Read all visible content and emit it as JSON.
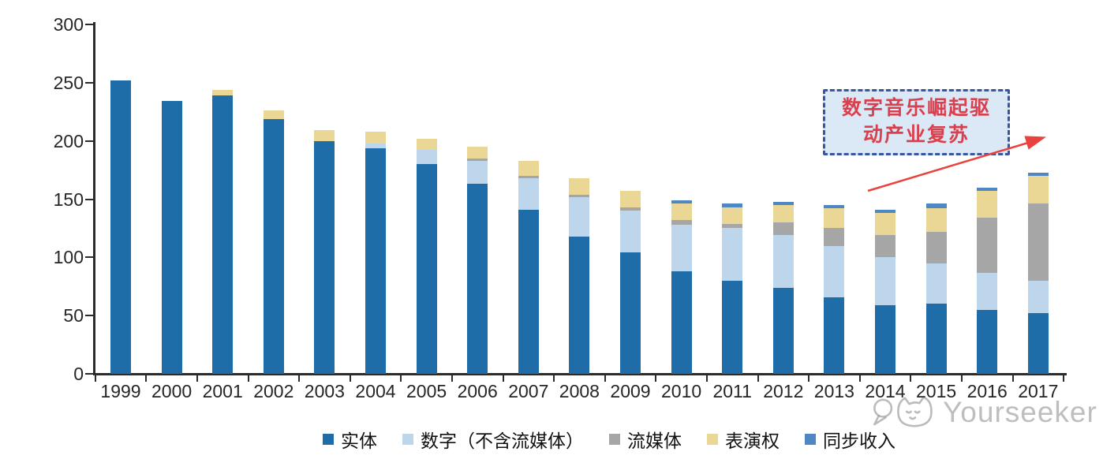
{
  "watermark": {
    "brand": "Yourseeker",
    "logo": "cat-logo-icon"
  },
  "annotation": {
    "line1": "数字音乐崛起驱",
    "line2": "动产业复苏",
    "full_text": "数字音乐崛起驱动产业复苏",
    "text_color": "#D8404D",
    "border_color": "#3A55A0",
    "fill_color": "#DBE8F6",
    "arrow_color": "#E8433E"
  },
  "chart_data": {
    "type": "bar",
    "stacked": true,
    "title": "",
    "xlabel": "",
    "ylabel": "",
    "ylim": [
      0,
      300
    ],
    "yticks": [
      0,
      50,
      100,
      150,
      200,
      250,
      300
    ],
    "grid": false,
    "legend_position": "bottom",
    "categories": [
      "1999",
      "2000",
      "2001",
      "2002",
      "2003",
      "2004",
      "2005",
      "2006",
      "2007",
      "2008",
      "2009",
      "2010",
      "2011",
      "2012",
      "2013",
      "2014",
      "2015",
      "2016",
      "2017"
    ],
    "series": [
      {
        "name": "实体",
        "color": "#1E6CA8",
        "values": [
          252,
          234,
          239,
          219,
          200,
          194,
          180,
          163,
          141,
          118,
          104,
          88,
          80,
          74,
          66,
          59,
          60,
          55,
          52
        ]
      },
      {
        "name": "数字（不含流媒体）",
        "color": "#BDD6EC",
        "values": [
          0,
          0,
          0,
          0,
          0,
          4,
          12,
          20,
          27,
          34,
          36,
          40,
          45,
          45,
          44,
          41,
          35,
          32,
          28
        ]
      },
      {
        "name": "流媒体",
        "color": "#A6A6A6",
        "values": [
          0,
          0,
          0,
          0,
          0,
          0,
          0,
          2,
          2,
          2,
          3,
          4,
          4,
          11,
          15,
          19,
          27,
          47,
          66
        ]
      },
      {
        "name": "表演权",
        "color": "#EBD795",
        "values": [
          0,
          0,
          5,
          7,
          9,
          10,
          10,
          10,
          13,
          14,
          14,
          14,
          14,
          15,
          17,
          19,
          20,
          23,
          24
        ]
      },
      {
        "name": "同步收入",
        "color": "#4F87C5",
        "values": [
          0,
          0,
          0,
          0,
          0,
          0,
          0,
          0,
          0,
          0,
          0,
          3,
          3,
          3,
          3,
          3,
          4,
          3,
          3
        ]
      }
    ],
    "totals": [
      252,
      234,
      244,
      226,
      209,
      208,
      202,
      195,
      183,
      168,
      157,
      149,
      146,
      148,
      145,
      141,
      146,
      160,
      173
    ]
  }
}
